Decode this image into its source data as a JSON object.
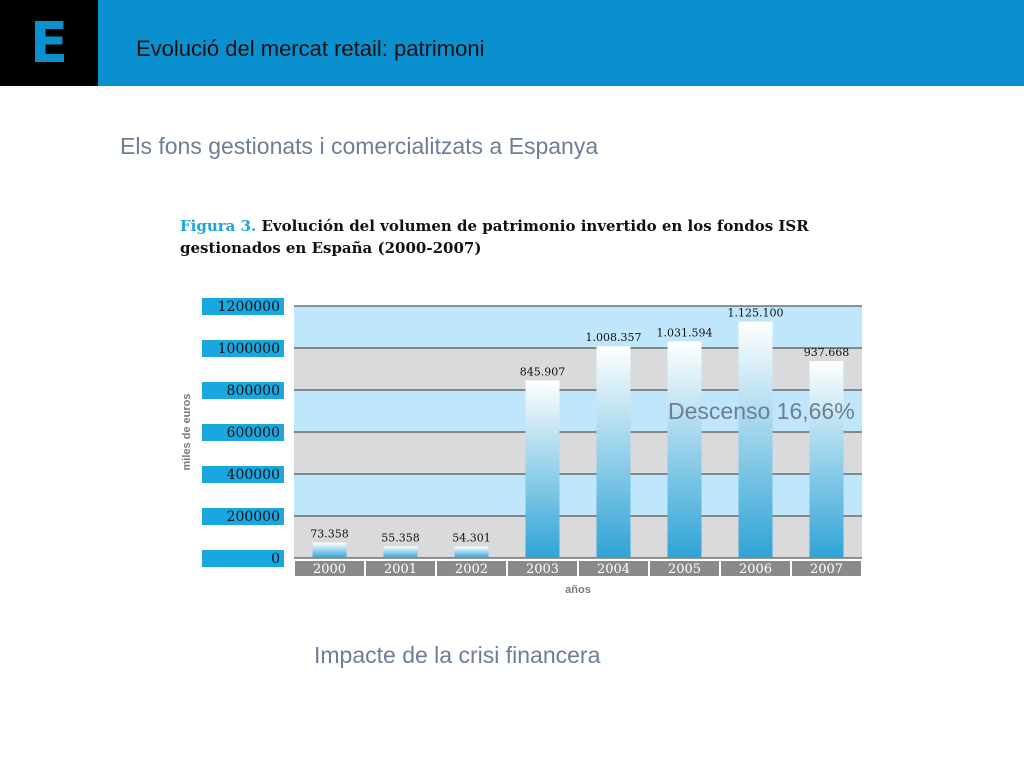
{
  "header": {
    "logo_letter": "E",
    "title": "Evolució del mercat retail: patrimoni"
  },
  "subtitle": "Els fons gestionats i comercialitzats a Espanya",
  "figure": {
    "label": "Figura 3.",
    "title_rest": " Evolución del volumen de patrimonio invertido en los fondos ISR gestionados en España (2000-2007)"
  },
  "annotation": "Descenso 16,66%",
  "footer": "Impacte de la crisi financera",
  "colors": {
    "header": "#0a8fcf",
    "bar_top": "#ffffff",
    "bar_bottom": "#2fa3d6",
    "band_light": "#bfe6fa",
    "band_gray": "#d9dadb"
  },
  "chart_data": {
    "type": "bar",
    "title": "Figura 3. Evolución del volumen de patrimonio invertido en los fondos ISR gestionados en España (2000-2007)",
    "xlabel": "años",
    "ylabel": "miles de euros",
    "ylim": [
      0,
      1200000
    ],
    "yticks": [
      "0",
      "200000",
      "400000",
      "600000",
      "800000",
      "1000000",
      "1200000"
    ],
    "categories": [
      "2000",
      "2001",
      "2002",
      "2003",
      "2004",
      "2005",
      "2006",
      "2007"
    ],
    "values": [
      73358,
      55358,
      54301,
      845907,
      1008357,
      1031594,
      1125100,
      937668
    ],
    "data_labels": [
      "73.358",
      "55.358",
      "54.301",
      "845.907",
      "1.008.357",
      "1.031.594",
      "1.125.100",
      "937.668"
    ],
    "grid": true
  }
}
